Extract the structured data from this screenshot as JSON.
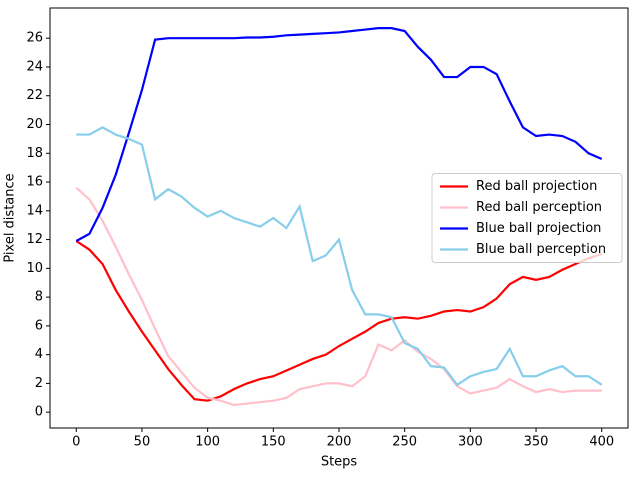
{
  "chart_data": {
    "type": "line",
    "x": [
      0,
      10,
      20,
      30,
      40,
      50,
      60,
      70,
      80,
      90,
      100,
      110,
      120,
      130,
      140,
      150,
      160,
      170,
      180,
      190,
      200,
      210,
      220,
      230,
      240,
      250,
      260,
      270,
      280,
      290,
      300,
      310,
      320,
      330,
      340,
      350,
      360,
      370,
      380,
      390,
      400
    ],
    "series": [
      {
        "name": "Red ball projection",
        "color": "#ff0000",
        "values": [
          11.9,
          11.3,
          10.3,
          8.5,
          7.0,
          5.6,
          4.3,
          3.0,
          1.9,
          0.9,
          0.8,
          1.1,
          1.6,
          2.0,
          2.3,
          2.5,
          2.9,
          3.3,
          3.7,
          4.0,
          4.6,
          5.1,
          5.6,
          6.2,
          6.5,
          6.6,
          6.5,
          6.7,
          7.0,
          7.1,
          7.0,
          7.3,
          7.9,
          8.9,
          9.4,
          9.2,
          9.4,
          9.9,
          10.3,
          10.7,
          11.0
        ]
      },
      {
        "name": "Red ball perception",
        "color": "#ffc0cb",
        "values": [
          15.6,
          14.8,
          13.3,
          11.5,
          9.6,
          7.8,
          5.8,
          3.9,
          2.8,
          1.7,
          1.0,
          0.8,
          0.5,
          0.6,
          0.7,
          0.8,
          1.0,
          1.6,
          1.8,
          2.0,
          2.0,
          1.8,
          2.5,
          4.7,
          4.3,
          5.0,
          4.2,
          3.7,
          3.0,
          1.8,
          1.3,
          1.5,
          1.7,
          2.3,
          1.8,
          1.4,
          1.6,
          1.4,
          1.5,
          1.5,
          1.5
        ]
      },
      {
        "name": "Blue ball projection",
        "color": "#0000ff",
        "values": [
          11.9,
          12.4,
          14.2,
          16.5,
          19.4,
          22.4,
          25.9,
          26.0,
          26.0,
          26.0,
          26.0,
          26.0,
          26.0,
          26.05,
          26.05,
          26.1,
          26.2,
          26.25,
          26.3,
          26.35,
          26.4,
          26.5,
          26.6,
          26.7,
          26.7,
          26.5,
          25.4,
          24.5,
          23.3,
          23.3,
          24.0,
          24.0,
          23.5,
          21.6,
          19.8,
          19.2,
          19.3,
          19.2,
          18.8,
          18.0,
          17.6
        ]
      },
      {
        "name": "Blue ball perception",
        "color": "#87ceeb",
        "values": [
          19.3,
          19.3,
          19.8,
          19.3,
          19.0,
          18.6,
          14.8,
          15.5,
          15.0,
          14.2,
          13.6,
          14.0,
          13.5,
          13.2,
          12.9,
          13.5,
          12.8,
          14.3,
          10.5,
          10.9,
          12.0,
          8.5,
          6.8,
          6.8,
          6.6,
          4.8,
          4.4,
          3.2,
          3.1,
          1.9,
          2.5,
          2.8,
          3.0,
          4.4,
          2.5,
          2.5,
          2.9,
          3.2,
          2.5,
          2.5,
          1.9
        ]
      }
    ],
    "x_label": "Steps",
    "y_label": "Pixel distance",
    "xlim": [
      -20,
      420
    ],
    "xticks": [
      0,
      50,
      100,
      150,
      200,
      250,
      300,
      350,
      400
    ],
    "ylim": [
      -1.1,
      28.1
    ],
    "yticks": [
      0,
      2,
      4,
      6,
      8,
      10,
      12,
      14,
      16,
      18,
      20,
      22,
      24,
      26
    ],
    "legend": "center right"
  }
}
